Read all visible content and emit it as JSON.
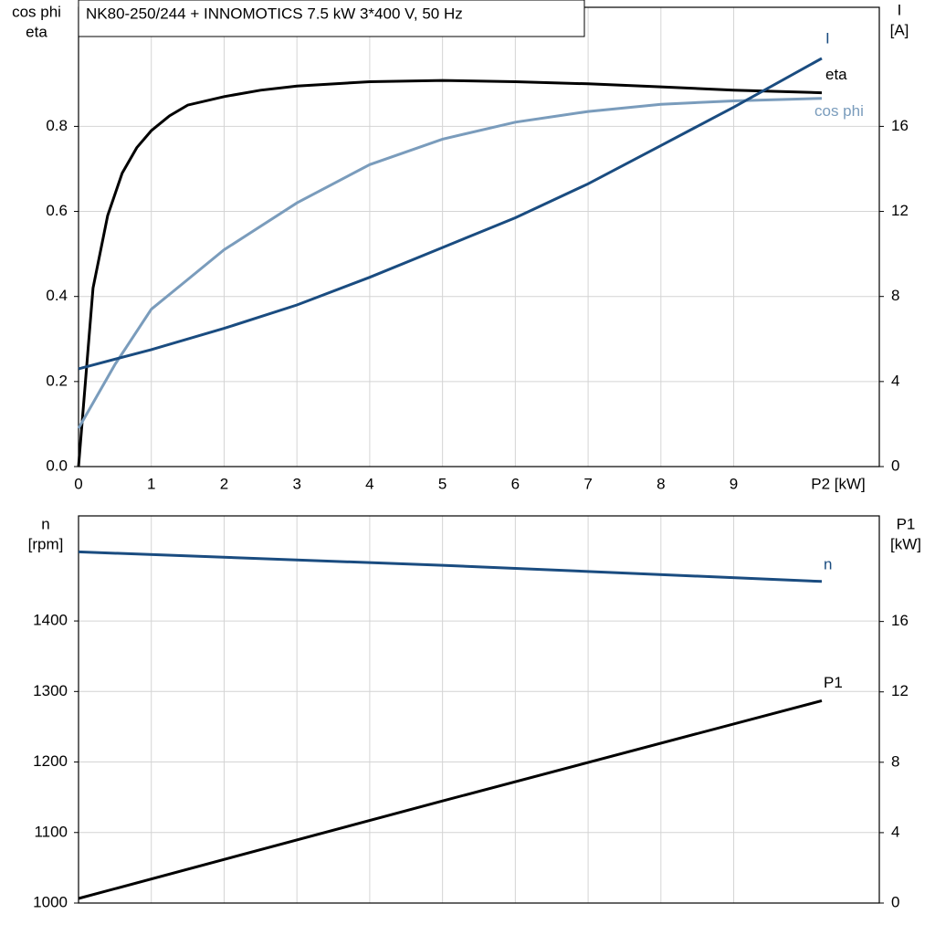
{
  "chart_data": [
    {
      "type": "line",
      "title": "NK80-250/244 + INNOMOTICS   7.5 kW   3*400 V, 50 Hz",
      "ylabel": [
        "cos phi",
        "eta"
      ],
      "y2label": [
        "I",
        "[A]"
      ],
      "xlabel": "P2 [kW]",
      "xlim": [
        0,
        11
      ],
      "xticks": [
        0,
        1,
        2,
        3,
        4,
        5,
        6,
        7,
        8,
        9
      ],
      "ylim": [
        0,
        1.08
      ],
      "yticks": [
        {
          "value": 0,
          "label": "0.0"
        },
        0.2,
        0.4,
        0.6,
        0.8
      ],
      "y2lim": [
        0,
        21.6
      ],
      "y2ticks": [
        0,
        4,
        8,
        12,
        16
      ],
      "grid": true,
      "series": [
        {
          "name": "eta",
          "color": "#000000",
          "x": [
            0,
            0.2,
            0.4,
            0.6,
            0.8,
            1,
            1.25,
            1.5,
            2,
            2.5,
            3,
            4,
            5,
            6,
            7,
            8,
            9,
            10.21
          ],
          "values": [
            0,
            0.42,
            0.59,
            0.69,
            0.75,
            0.79,
            0.825,
            0.85,
            0.87,
            0.885,
            0.895,
            0.905,
            0.908,
            0.905,
            0.9,
            0.893,
            0.885,
            0.879
          ]
        },
        {
          "name": "cos phi",
          "color": "#7a9cbc",
          "x": [
            0,
            0.5,
            1,
            1.5,
            2,
            3,
            4,
            5,
            6,
            7,
            8,
            9,
            10.21
          ],
          "values": [
            0.09,
            0.24,
            0.37,
            0.44,
            0.51,
            0.62,
            0.71,
            0.77,
            0.81,
            0.835,
            0.852,
            0.86,
            0.866
          ]
        },
        {
          "name": "I",
          "color": "#1a4c80",
          "axis": "y2",
          "x": [
            0,
            1,
            2,
            3,
            4,
            5,
            6,
            7,
            8,
            9,
            10.21
          ],
          "values": [
            4.6,
            5.5,
            6.5,
            7.6,
            8.9,
            10.3,
            11.7,
            13.3,
            15.1,
            16.9,
            19.2
          ]
        }
      ]
    },
    {
      "type": "line",
      "ylabel": [
        "n",
        "[rpm]"
      ],
      "y2label": [
        "P1",
        "[kW]"
      ],
      "sharex": true,
      "xlim": [
        0,
        11
      ],
      "ylim": [
        1000,
        1549
      ],
      "yticks": [
        1000,
        1100,
        1200,
        1300,
        1400
      ],
      "y2lim": [
        0,
        22
      ],
      "y2ticks": [
        0,
        4,
        8,
        12,
        16
      ],
      "grid": true,
      "series": [
        {
          "name": "n",
          "color": "#1a4c80",
          "x": [
            0,
            5,
            10.21
          ],
          "values": [
            1498,
            1479,
            1456
          ]
        },
        {
          "name": "P1",
          "color": "#000000",
          "axis": "y2",
          "x": [
            0,
            5,
            10.21
          ],
          "values": [
            0.26,
            5.8,
            11.5
          ]
        }
      ]
    }
  ]
}
